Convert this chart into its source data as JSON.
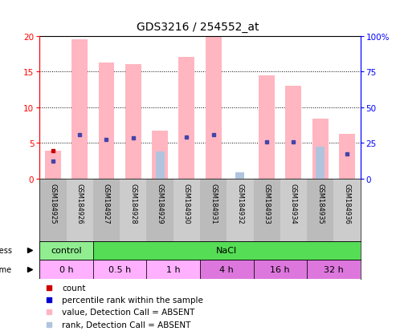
{
  "title": "GDS3216 / 254552_at",
  "samples": [
    "GSM184925",
    "GSM184926",
    "GSM184927",
    "GSM184928",
    "GSM184929",
    "GSM184930",
    "GSM184931",
    "GSM184932",
    "GSM184933",
    "GSM184934",
    "GSM184935",
    "GSM184936"
  ],
  "pink_bars": [
    3.9,
    19.5,
    16.3,
    16.0,
    6.7,
    17.0,
    20.0,
    0.0,
    14.4,
    13.0,
    8.4,
    6.3
  ],
  "red_dots": [
    3.9,
    null,
    null,
    null,
    null,
    null,
    null,
    null,
    null,
    null,
    null,
    null
  ],
  "blue_dots": [
    2.5,
    6.2,
    5.5,
    5.7,
    null,
    5.8,
    6.2,
    null,
    5.1,
    5.1,
    null,
    3.5
  ],
  "light_blue_bars": [
    null,
    null,
    null,
    null,
    3.8,
    null,
    null,
    0.9,
    null,
    null,
    4.5,
    null
  ],
  "ylim": [
    0,
    20
  ],
  "yticks": [
    0,
    5,
    10,
    15,
    20
  ],
  "y2ticks": [
    0,
    25,
    50,
    75,
    100
  ],
  "stress_groups": [
    {
      "label": "control",
      "start": 0,
      "end": 2,
      "color": "#90EE90"
    },
    {
      "label": "NaCl",
      "start": 2,
      "end": 12,
      "color": "#55DD55"
    }
  ],
  "time_groups": [
    {
      "label": "0 h",
      "start": 0,
      "end": 2,
      "color": "#FFB0FF"
    },
    {
      "label": "0.5 h",
      "start": 2,
      "end": 4,
      "color": "#FFB0FF"
    },
    {
      "label": "1 h",
      "start": 4,
      "end": 6,
      "color": "#FFB0FF"
    },
    {
      "label": "4 h",
      "start": 6,
      "end": 8,
      "color": "#DD77DD"
    },
    {
      "label": "16 h",
      "start": 8,
      "end": 10,
      "color": "#DD77DD"
    },
    {
      "label": "32 h",
      "start": 10,
      "end": 12,
      "color": "#DD77DD"
    }
  ],
  "legend_items": [
    {
      "color": "#CC0000",
      "label": "count"
    },
    {
      "color": "#0000CC",
      "label": "percentile rank within the sample"
    },
    {
      "color": "#FFB6C1",
      "label": "value, Detection Call = ABSENT"
    },
    {
      "color": "#B0C4DE",
      "label": "rank, Detection Call = ABSENT"
    }
  ],
  "bar_color": "#FFB6C1",
  "light_blue_color": "#B0C4DE",
  "red_color": "#CC0000",
  "blue_color": "#4444AA",
  "background_color": "#FFFFFF",
  "grid_color": "#000000",
  "left_axis_color": "#FF0000",
  "right_axis_color": "#0000FF",
  "sample_bg_odd": "#CCCCCC",
  "sample_bg_even": "#BBBBBB"
}
